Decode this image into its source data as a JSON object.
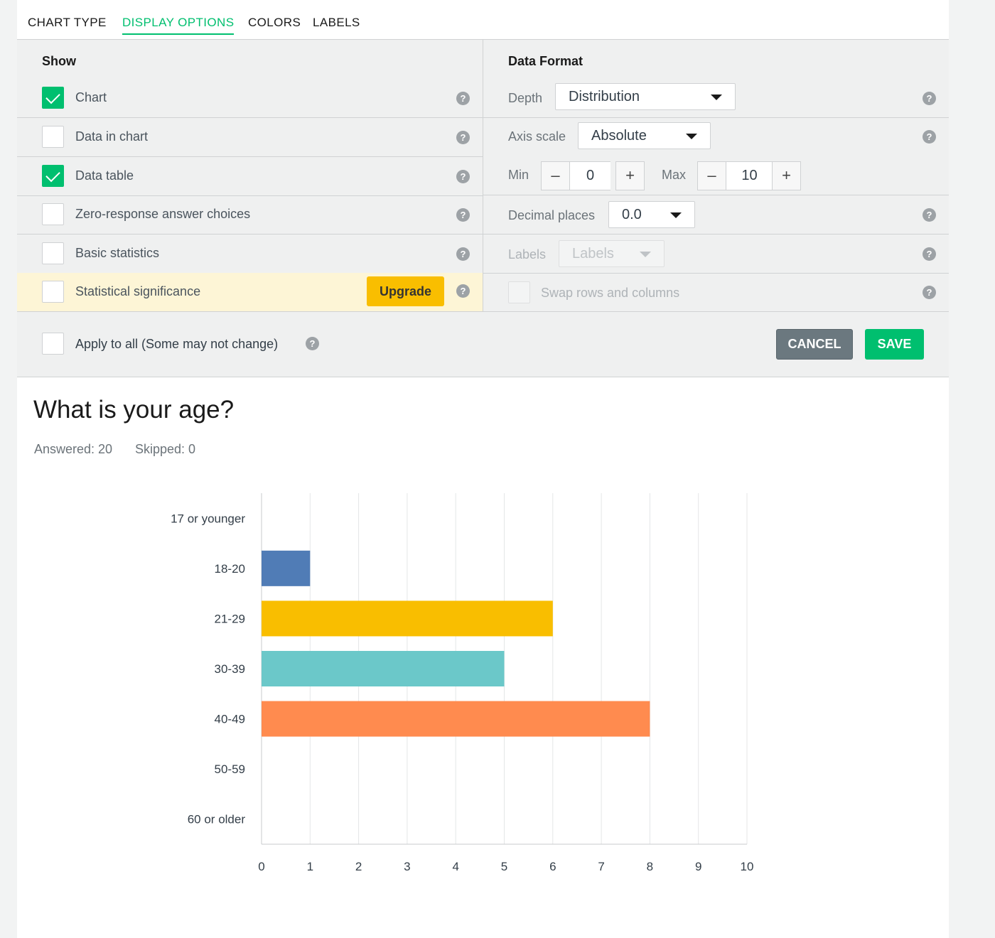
{
  "tabs": [
    {
      "label": "CHART TYPE",
      "active": false
    },
    {
      "label": "DISPLAY OPTIONS",
      "active": true
    },
    {
      "label": "COLORS",
      "active": false
    },
    {
      "label": "LABELS",
      "active": false
    }
  ],
  "show": {
    "title": "Show",
    "items": [
      {
        "label": "Chart",
        "checked": true
      },
      {
        "label": "Data in chart",
        "checked": false
      },
      {
        "label": "Data table",
        "checked": true
      },
      {
        "label": "Zero-response answer choices",
        "checked": false
      },
      {
        "label": "Basic statistics",
        "checked": false
      },
      {
        "label": "Statistical significance",
        "checked": false,
        "upgrade": "Upgrade"
      }
    ]
  },
  "format": {
    "title": "Data Format",
    "depth_label": "Depth",
    "depth_value": "Distribution",
    "axis_label": "Axis scale",
    "axis_value": "Absolute",
    "min_label": "Min",
    "min_value": "0",
    "max_label": "Max",
    "max_value": "10",
    "minus": "–",
    "plus": "+",
    "decimal_label": "Decimal places",
    "decimal_value": "0.0",
    "labels_label": "Labels",
    "labels_value": "Labels",
    "swap_label": "Swap rows and columns"
  },
  "help_glyph": "?",
  "apply_all": "Apply to all (Some may not change)",
  "buttons": {
    "cancel": "CANCEL",
    "save": "SAVE"
  },
  "question": {
    "title": "What is your age?",
    "answered": "Answered: 20",
    "skipped": "Skipped: 0"
  },
  "colors": {
    "accent": "#00bf6f",
    "upgrade": "#f9be00"
  },
  "chart_data": {
    "type": "bar",
    "orientation": "horizontal",
    "categories": [
      "17 or younger",
      "18-20",
      "21-29",
      "30-39",
      "40-49",
      "50-59",
      "60 or older"
    ],
    "values": [
      0,
      1,
      6,
      5,
      8,
      0,
      0
    ],
    "colors": [
      "#507cb6",
      "#507cb6",
      "#f9be00",
      "#6bc8c9",
      "#ff8b4f",
      "#507cb6",
      "#507cb6"
    ],
    "xlim": [
      0,
      10
    ],
    "xticks": [
      0,
      1,
      2,
      3,
      4,
      5,
      6,
      7,
      8,
      9,
      10
    ],
    "grid": true
  }
}
